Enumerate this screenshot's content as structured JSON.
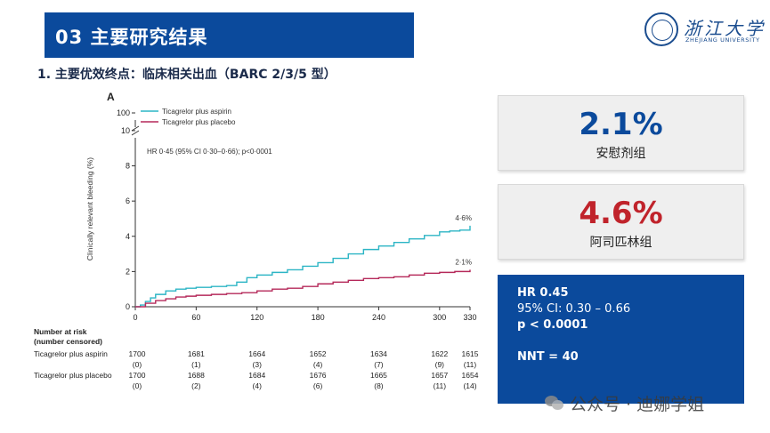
{
  "header": {
    "title": "03 主要研究结果",
    "logo_cn": "浙江大学",
    "logo_en": "ZHEJIANG UNIVERSITY"
  },
  "subtitle": "1. 主要优效终点：临床相关出血（BARC 2/3/5 型）",
  "chart_data": {
    "type": "line",
    "panel_label": "A",
    "ylabel": "Clinically relevant bleeding (%)",
    "y_ticks": [
      "0",
      "2",
      "4",
      "6",
      "8",
      "10",
      "100"
    ],
    "ylim": [
      0,
      10.5
    ],
    "y_axis_break": true,
    "x_ticks": [
      0,
      60,
      120,
      180,
      240,
      300,
      330
    ],
    "xlim": [
      0,
      330
    ],
    "annotation": "HR 0·45 (95% CI 0·30–0·66); p<0·0001",
    "legend_position": "top-left",
    "series": [
      {
        "name": "Ticagrelor plus aspirin",
        "color": "#2cb5c5",
        "end_label": "4·6%",
        "x": [
          0,
          5,
          10,
          15,
          20,
          30,
          40,
          50,
          60,
          75,
          90,
          100,
          110,
          120,
          135,
          150,
          165,
          180,
          195,
          210,
          225,
          240,
          255,
          270,
          285,
          300,
          310,
          320,
          330
        ],
        "y": [
          0,
          0.1,
          0.3,
          0.5,
          0.7,
          0.9,
          1.0,
          1.05,
          1.1,
          1.15,
          1.2,
          1.4,
          1.65,
          1.8,
          1.95,
          2.1,
          2.3,
          2.5,
          2.75,
          3.0,
          3.25,
          3.45,
          3.65,
          3.85,
          4.05,
          4.25,
          4.3,
          4.35,
          4.6
        ]
      },
      {
        "name": "Ticagrelor plus placebo",
        "color": "#b5295a",
        "end_label": "2·1%",
        "x": [
          0,
          10,
          20,
          30,
          40,
          50,
          60,
          75,
          90,
          105,
          120,
          135,
          150,
          165,
          180,
          195,
          210,
          225,
          240,
          255,
          270,
          285,
          300,
          315,
          330
        ],
        "y": [
          0,
          0.2,
          0.35,
          0.45,
          0.55,
          0.6,
          0.65,
          0.7,
          0.75,
          0.8,
          0.9,
          1.0,
          1.05,
          1.15,
          1.3,
          1.4,
          1.5,
          1.6,
          1.65,
          1.7,
          1.8,
          1.9,
          1.95,
          2.0,
          2.1
        ]
      }
    ],
    "risk_table": {
      "heading": [
        "Number at risk",
        "(number censored)"
      ],
      "rows": [
        {
          "label": "Ticagrelor plus aspirin",
          "values": [
            "1700",
            "1681",
            "1664",
            "1652",
            "1634",
            "1622",
            "1615"
          ],
          "censored": [
            "(0)",
            "(1)",
            "(3)",
            "(4)",
            "(7)",
            "(9)",
            "(11)"
          ]
        },
        {
          "label": "Ticagrelor plus placebo",
          "values": [
            "1700",
            "1688",
            "1684",
            "1676",
            "1665",
            "1657",
            "1654"
          ],
          "censored": [
            "(0)",
            "(2)",
            "(4)",
            "(6)",
            "(8)",
            "(11)",
            "(14)"
          ]
        }
      ]
    }
  },
  "stats": {
    "placebo": {
      "value": "2.1%",
      "label": "安慰剂组",
      "color": "#0b4a9c"
    },
    "aspirin": {
      "value": "4.6%",
      "label": "阿司匹林组",
      "color": "#c0232b"
    },
    "hr": "HR  0.45",
    "ci": "95% CI: 0.30 – 0.66",
    "p": "p < 0.0001",
    "nnt": "NNT = 40"
  },
  "watermark": "公众号 · 迪娜学姐"
}
